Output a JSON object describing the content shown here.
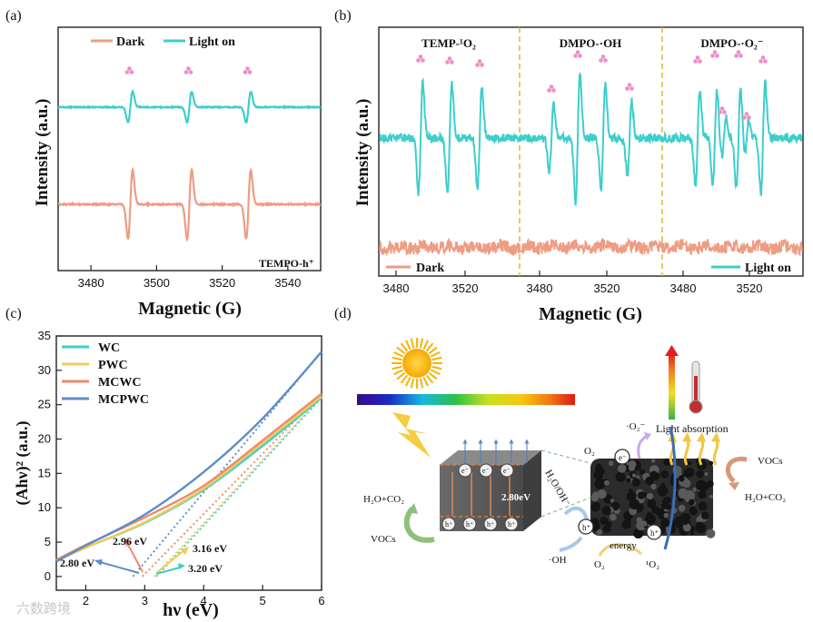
{
  "panel_labels": [
    "(a)",
    "(b)",
    "(c)",
    "(d)"
  ],
  "watermark": "六数跨境",
  "chart_data": [
    {
      "type": "line",
      "panel": "(a)",
      "xlabel": "Magnetic (G)",
      "ylabel": "Intensity (a.u.)",
      "xlim": [
        3470,
        3550
      ],
      "xticks": [
        "3480",
        "3500",
        "3520",
        "3540"
      ],
      "legend": [
        "Dark",
        "Light on"
      ],
      "legend_position": "top",
      "annotation": "TEMPO-h⁺",
      "series": [
        {
          "name": "Dark",
          "color": "#EE9C83",
          "peaks_x": [
            3492,
            3510,
            3528
          ],
          "amplitude": "large"
        },
        {
          "name": "Light on",
          "color": "#3ECECB",
          "peaks_x": [
            3492,
            3510,
            3528
          ],
          "amplitude": "small"
        }
      ]
    },
    {
      "type": "line",
      "panel": "(b)",
      "xlabel": "Magnetic (G)",
      "ylabel": "Intensity (a.u.)",
      "xticks": [
        "3480",
        "3520",
        "3480",
        "3520",
        "3480",
        "3520"
      ],
      "section_labels": [
        "TEMP-¹O₂",
        "DMPO-·OH",
        "DMPO-·O₂⁻"
      ],
      "legend": [
        "Dark",
        "Light on"
      ],
      "series": [
        {
          "name": "Dark",
          "color": "#EE9C83"
        },
        {
          "name": "Light on",
          "color": "#3ECECB"
        }
      ]
    },
    {
      "type": "line",
      "panel": "(c)",
      "xlabel": "hν (eV)",
      "ylabel": "(Ahν)² (a.u.)",
      "xlim": [
        1.5,
        6
      ],
      "ylim": [
        -2,
        35
      ],
      "xticks": [
        "2",
        "3",
        "4",
        "5",
        "6"
      ],
      "yticks": [
        "0",
        "5",
        "10",
        "15",
        "20",
        "25",
        "30",
        "35"
      ],
      "legend_position": "top-left",
      "series": [
        {
          "name": "WC",
          "color": "#3ECECB",
          "x": [
            1.5,
            2,
            3,
            4,
            5,
            6
          ],
          "y": [
            2.3,
            4.2,
            7.8,
            12.6,
            19.0,
            26.0
          ],
          "bandgap": "3.20 eV"
        },
        {
          "name": "PWC",
          "color": "#F2CC55",
          "x": [
            1.5,
            2,
            3,
            4,
            5,
            6
          ],
          "y": [
            2.3,
            4.2,
            7.9,
            12.8,
            19.4,
            26.2
          ],
          "bandgap": "3.16 eV"
        },
        {
          "name": "MCWC",
          "color": "#EE8A6E",
          "x": [
            1.5,
            2,
            3,
            4,
            5,
            6
          ],
          "y": [
            2.4,
            4.6,
            8.6,
            13.2,
            19.8,
            26.6
          ],
          "bandgap": "2.96 eV"
        },
        {
          "name": "MCPWC",
          "color": "#5B8EC7",
          "x": [
            1.5,
            2,
            3,
            4,
            5,
            6
          ],
          "y": [
            2.2,
            4.5,
            9.0,
            15.2,
            23.0,
            32.7
          ],
          "bandgap": "2.80 eV"
        }
      ],
      "annotations": [
        "2.96 eV",
        "3.16 eV",
        "2.80 eV",
        "3.20 eV"
      ]
    }
  ],
  "diagram_d": {
    "labels": {
      "e": "e⁻",
      "h": "h⁺",
      "gap": "2.80eV",
      "h2o_oh": "H₂O/OH⁻",
      "h2o_co2_left": "H₂O+CO₂",
      "vocs_left": "VOCs",
      "oh_rad": "·OH",
      "o2_bottom": "O₂",
      "energy": "energy",
      "singlet_o2": "¹O₂",
      "o2_top": "O₂",
      "o2_radical": "·O₂⁻",
      "light_absorption": "Light absorption",
      "vocs_right": "VOCs",
      "h2o_co2_right": "H₂O+CO₂"
    }
  }
}
